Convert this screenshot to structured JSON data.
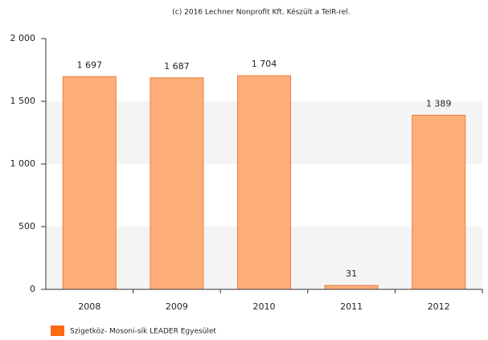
{
  "chart_data": {
    "type": "bar",
    "title": "(c) 2016 Lechner Nonprofit Kft. Készült a TeIR-rel.",
    "categories": [
      "2008",
      "2009",
      "2010",
      "2011",
      "2012"
    ],
    "series": [
      {
        "name": "Szigetköz- Mosoni-sík LEADER Egyesület",
        "color": "#fdae7b",
        "values": [
          1697,
          1687,
          1704,
          31,
          1389
        ],
        "value_labels": [
          "1 697",
          "1 687",
          "1 704",
          "31",
          "1 389"
        ]
      }
    ],
    "ylim": [
      0,
      2000
    ],
    "yticks": [
      0,
      500,
      {
        "value": 1000,
        "label": "1 000"
      },
      {
        "value": 1500,
        "label": "1 500"
      },
      {
        "value": 2000,
        "label": "2 000"
      }
    ],
    "grid": true
  }
}
